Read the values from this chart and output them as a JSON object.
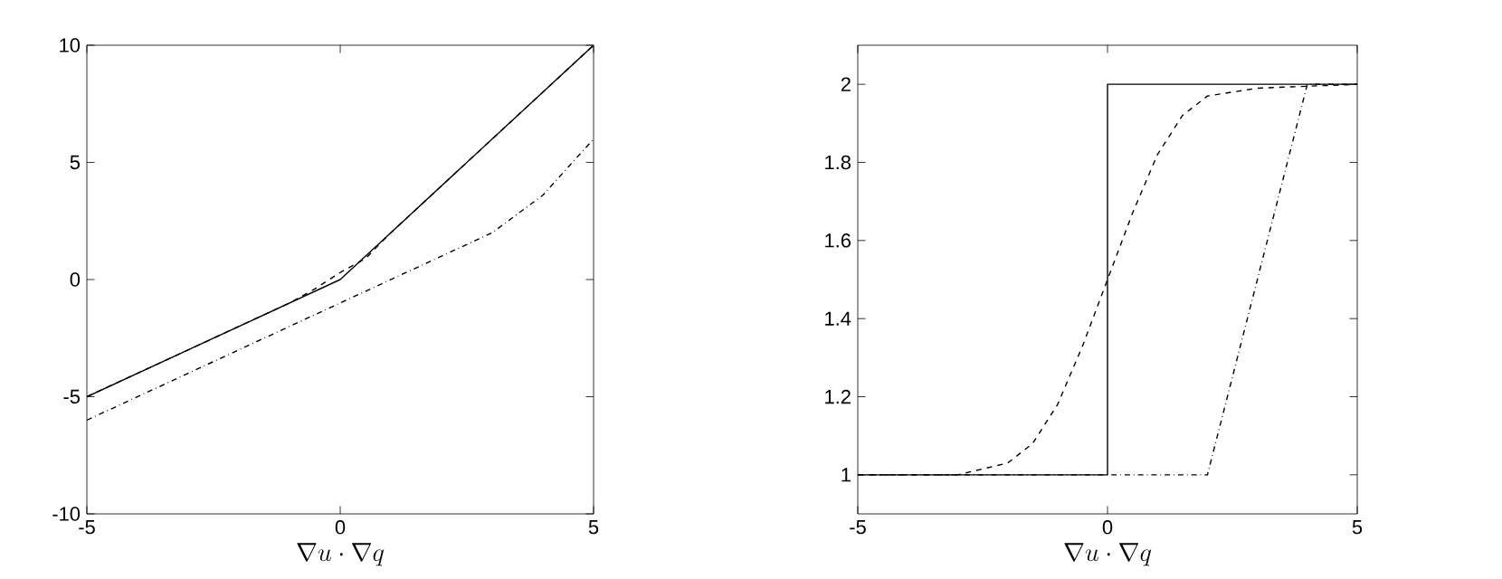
{
  "chart_data": [
    {
      "type": "line",
      "xlabel": "\\nabla u\\cdot\\nabla q",
      "xlim": [
        -5,
        5
      ],
      "ylim": [
        -10,
        10
      ],
      "xticks": [
        -5,
        0,
        5
      ],
      "yticks": [
        -10,
        -5,
        0,
        5,
        10
      ],
      "marker": "none",
      "series": [
        {
          "color": "#000000",
          "line_style": "solid",
          "x": [
            -5,
            0,
            5
          ],
          "values": [
            -5,
            0,
            10
          ]
        },
        {
          "color": "#000000",
          "line_style": "dashed",
          "x": [
            -5,
            -1.5,
            -1,
            -0.5,
            0,
            0.5,
            1,
            1.5,
            5
          ],
          "values": [
            -5,
            -1.5,
            -1,
            -0.4,
            0.3,
            0.9,
            2,
            3,
            10
          ]
        },
        {
          "color": "#000000",
          "line_style": "dashdot",
          "x": [
            -5,
            0,
            2,
            3,
            4,
            5
          ],
          "values": [
            -6,
            -1,
            1,
            2,
            3.6,
            6
          ]
        }
      ]
    },
    {
      "type": "line",
      "xlabel": "\\nabla u\\cdot\\nabla q",
      "xlim": [
        -5,
        5
      ],
      "ylim": [
        0.9,
        2.1
      ],
      "xticks": [
        -5,
        0,
        5
      ],
      "yticks": [
        1,
        1.2,
        1.4,
        1.6,
        1.8,
        2
      ],
      "marker": "none",
      "series": [
        {
          "color": "#000000",
          "line_style": "solid",
          "x": [
            -5,
            0,
            0,
            5
          ],
          "values": [
            1,
            1,
            2,
            2
          ]
        },
        {
          "color": "#000000",
          "line_style": "dashed",
          "x": [
            -5,
            -3,
            -2,
            -1.5,
            -1,
            -0.5,
            0,
            0.5,
            1,
            1.5,
            2,
            3,
            5
          ],
          "values": [
            1,
            1,
            1.03,
            1.08,
            1.18,
            1.33,
            1.5,
            1.67,
            1.82,
            1.92,
            1.97,
            1.99,
            2
          ]
        },
        {
          "color": "#000000",
          "line_style": "dashdot",
          "x": [
            -5,
            2,
            4,
            5
          ],
          "values": [
            1,
            1,
            2,
            2
          ]
        }
      ]
    }
  ]
}
